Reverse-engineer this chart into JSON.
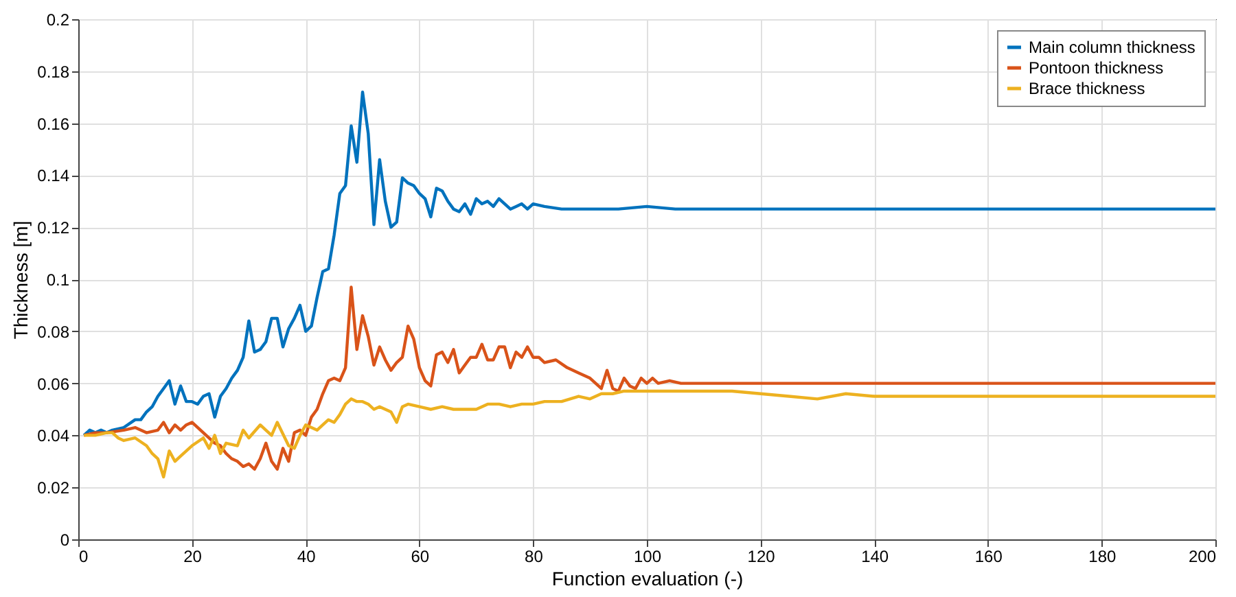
{
  "chart_data": {
    "type": "line",
    "xlabel": "Function evaluation (-)",
    "ylabel": "Thickness [m]",
    "xlim": [
      0,
      200
    ],
    "xticks": [
      0,
      20,
      40,
      60,
      80,
      100,
      120,
      140,
      160,
      180,
      200
    ],
    "ylim": [
      0,
      0.2
    ],
    "yticks": [
      0,
      0.02,
      0.04,
      0.06,
      0.08,
      0.1,
      0.12,
      0.14,
      0.16,
      0.18,
      0.2
    ],
    "grid": true,
    "legend": "top right",
    "marker": "none",
    "line_style": "solid",
    "series": [
      {
        "name": "Main column thickness",
        "color": "#0072bd",
        "x": [
          1,
          2,
          3,
          4,
          5,
          6,
          8,
          10,
          11,
          12,
          13,
          14,
          15,
          16,
          17,
          18,
          19,
          20,
          21,
          22,
          23,
          24,
          25,
          26,
          27,
          28,
          29,
          30,
          31,
          32,
          33,
          34,
          35,
          36,
          37,
          38,
          39,
          40,
          41,
          42,
          43,
          44,
          45,
          46,
          47,
          48,
          49,
          50,
          51,
          52,
          53,
          54,
          55,
          56,
          57,
          58,
          59,
          60,
          61,
          62,
          63,
          64,
          65,
          66,
          67,
          68,
          69,
          70,
          71,
          72,
          73,
          74,
          75,
          76,
          77,
          78,
          79,
          80,
          82,
          85,
          88,
          90,
          95,
          100,
          105,
          110,
          120,
          200
        ],
        "values": [
          0.04,
          0.042,
          0.041,
          0.042,
          0.041,
          0.042,
          0.043,
          0.046,
          0.046,
          0.049,
          0.051,
          0.055,
          0.058,
          0.061,
          0.052,
          0.059,
          0.053,
          0.053,
          0.052,
          0.055,
          0.056,
          0.047,
          0.055,
          0.058,
          0.062,
          0.065,
          0.07,
          0.084,
          0.072,
          0.073,
          0.076,
          0.085,
          0.085,
          0.074,
          0.081,
          0.085,
          0.09,
          0.08,
          0.082,
          0.093,
          0.103,
          0.104,
          0.117,
          0.133,
          0.136,
          0.159,
          0.145,
          0.172,
          0.156,
          0.121,
          0.146,
          0.13,
          0.12,
          0.122,
          0.139,
          0.137,
          0.136,
          0.133,
          0.131,
          0.124,
          0.135,
          0.134,
          0.13,
          0.127,
          0.126,
          0.129,
          0.125,
          0.131,
          0.129,
          0.13,
          0.128,
          0.131,
          0.129,
          0.127,
          0.128,
          0.129,
          0.127,
          0.129,
          0.128,
          0.127,
          0.127,
          0.127,
          0.127,
          0.128,
          0.127,
          0.127,
          0.127,
          0.127
        ]
      },
      {
        "name": "Pontoon thickness",
        "color": "#d95319",
        "x": [
          1,
          3,
          5,
          8,
          10,
          12,
          14,
          15,
          16,
          17,
          18,
          19,
          20,
          22,
          24,
          25,
          26,
          27,
          28,
          29,
          30,
          31,
          32,
          33,
          34,
          35,
          36,
          37,
          38,
          39,
          40,
          41,
          42,
          43,
          44,
          45,
          46,
          47,
          48,
          49,
          50,
          51,
          52,
          53,
          54,
          55,
          56,
          57,
          58,
          59,
          60,
          61,
          62,
          63,
          64,
          65,
          66,
          67,
          68,
          69,
          70,
          71,
          72,
          73,
          74,
          75,
          76,
          77,
          78,
          79,
          80,
          81,
          82,
          84,
          86,
          88,
          90,
          92,
          93,
          94,
          95,
          96,
          97,
          98,
          99,
          100,
          101,
          102,
          104,
          106,
          110,
          120,
          130,
          200
        ],
        "values": [
          0.04,
          0.041,
          0.041,
          0.042,
          0.043,
          0.041,
          0.042,
          0.045,
          0.041,
          0.044,
          0.042,
          0.044,
          0.045,
          0.041,
          0.037,
          0.036,
          0.033,
          0.031,
          0.03,
          0.028,
          0.029,
          0.027,
          0.031,
          0.037,
          0.03,
          0.027,
          0.035,
          0.03,
          0.041,
          0.042,
          0.04,
          0.047,
          0.05,
          0.056,
          0.061,
          0.062,
          0.061,
          0.066,
          0.097,
          0.073,
          0.086,
          0.078,
          0.067,
          0.074,
          0.069,
          0.065,
          0.068,
          0.07,
          0.082,
          0.077,
          0.066,
          0.061,
          0.059,
          0.071,
          0.072,
          0.068,
          0.073,
          0.064,
          0.067,
          0.07,
          0.07,
          0.075,
          0.069,
          0.069,
          0.074,
          0.074,
          0.066,
          0.072,
          0.07,
          0.074,
          0.07,
          0.07,
          0.068,
          0.069,
          0.066,
          0.064,
          0.062,
          0.058,
          0.065,
          0.058,
          0.057,
          0.062,
          0.059,
          0.058,
          0.062,
          0.06,
          0.062,
          0.06,
          0.061,
          0.06,
          0.06,
          0.06,
          0.06,
          0.06
        ]
      },
      {
        "name": "Brace thickness",
        "color": "#edb120",
        "x": [
          1,
          3,
          5,
          6,
          7,
          8,
          10,
          12,
          13,
          14,
          15,
          16,
          17,
          18,
          20,
          22,
          23,
          24,
          25,
          26,
          28,
          29,
          30,
          32,
          33,
          34,
          35,
          37,
          38,
          39,
          40,
          42,
          43,
          44,
          45,
          46,
          47,
          48,
          49,
          50,
          51,
          52,
          53,
          54,
          55,
          56,
          57,
          58,
          60,
          62,
          64,
          66,
          68,
          70,
          72,
          74,
          76,
          78,
          80,
          82,
          85,
          88,
          90,
          92,
          94,
          96,
          98,
          100,
          105,
          110,
          115,
          120,
          125,
          130,
          135,
          140,
          150,
          200
        ],
        "values": [
          0.04,
          0.04,
          0.041,
          0.041,
          0.039,
          0.038,
          0.039,
          0.036,
          0.033,
          0.031,
          0.024,
          0.034,
          0.03,
          0.032,
          0.036,
          0.039,
          0.035,
          0.04,
          0.033,
          0.037,
          0.036,
          0.042,
          0.039,
          0.044,
          0.042,
          0.04,
          0.045,
          0.036,
          0.035,
          0.04,
          0.044,
          0.042,
          0.044,
          0.046,
          0.045,
          0.048,
          0.052,
          0.054,
          0.053,
          0.053,
          0.052,
          0.05,
          0.051,
          0.05,
          0.049,
          0.045,
          0.051,
          0.052,
          0.051,
          0.05,
          0.051,
          0.05,
          0.05,
          0.05,
          0.052,
          0.052,
          0.051,
          0.052,
          0.052,
          0.053,
          0.053,
          0.055,
          0.054,
          0.056,
          0.056,
          0.057,
          0.057,
          0.057,
          0.057,
          0.057,
          0.057,
          0.056,
          0.055,
          0.054,
          0.056,
          0.055,
          0.055,
          0.055
        ]
      }
    ]
  }
}
